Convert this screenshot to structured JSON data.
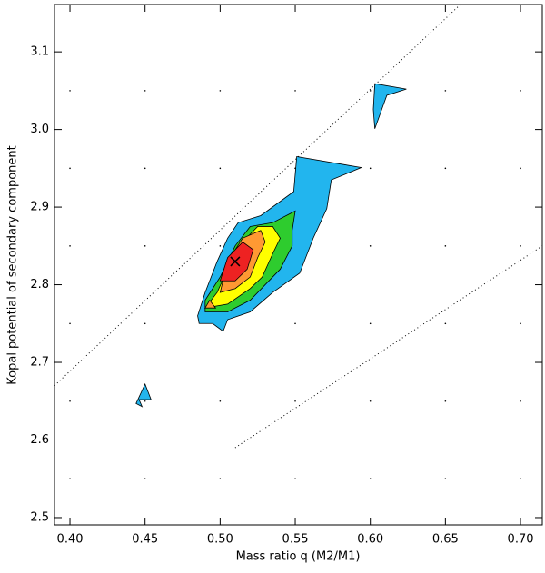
{
  "chart_data": {
    "type": "contour",
    "x_label": "Mass ratio q (M2/M1)",
    "y_label": "Kopal potential of secondary component",
    "xlim": [
      0.3897,
      0.7145
    ],
    "ylim": [
      2.4906,
      3.161
    ],
    "xticks": [
      {
        "value": 0.4,
        "label": "0.40"
      },
      {
        "value": 0.45,
        "label": "0.45"
      },
      {
        "value": 0.5,
        "label": "0.50"
      },
      {
        "value": 0.55,
        "label": "0.55"
      },
      {
        "value": 0.6,
        "label": "0.60"
      },
      {
        "value": 0.65,
        "label": "0.65"
      },
      {
        "value": 0.7,
        "label": "0.70"
      }
    ],
    "yticks": [
      2.5,
      2.6,
      2.7,
      2.8,
      2.9,
      {
        "value": 3,
        "label": "3.0"
      },
      3.1
    ],
    "contours": [
      {
        "color": "#22b5ee",
        "x": [
          0.485,
          0.486,
          0.495,
          0.502,
          0.505,
          0.52,
          0.535,
          0.553,
          0.562,
          0.571,
          0.574,
          0.594,
          0.551,
          0.549,
          0.527,
          0.512,
          0.505,
          0.498,
          0.49
        ],
        "y": [
          2.76,
          2.75,
          2.75,
          2.74,
          2.755,
          2.765,
          2.79,
          2.815,
          2.86,
          2.898,
          2.935,
          2.951,
          2.965,
          2.92,
          2.889,
          2.88,
          2.86,
          2.83,
          2.79
        ]
      },
      {
        "color": "#22b5ee",
        "x": [
          0.603,
          0.624,
          0.611,
          0.603,
          0.602
        ],
        "y": [
          3.059,
          3.052,
          3.044,
          3.001,
          3.026
        ]
      },
      {
        "color": "#22b5ee",
        "x": [
          0.45,
          0.454,
          0.446,
          0.448,
          0.444
        ],
        "y": [
          2.672,
          2.652,
          2.652,
          2.643,
          2.647
        ]
      },
      {
        "color": "#2ecc2e",
        "x": [
          0.49,
          0.49,
          0.5,
          0.51,
          0.52,
          0.535,
          0.545,
          0.55,
          0.548,
          0.548,
          0.54,
          0.53,
          0.52,
          0.505
        ],
        "y": [
          2.765,
          2.78,
          2.81,
          2.85,
          2.875,
          2.88,
          2.89,
          2.895,
          2.87,
          2.85,
          2.82,
          2.8,
          2.78,
          2.765
        ]
      },
      {
        "color": "#ffff00",
        "x": [
          0.49,
          0.498,
          0.505,
          0.515,
          0.525,
          0.535,
          0.54,
          0.535,
          0.528,
          0.52,
          0.505
        ],
        "y": [
          2.77,
          2.79,
          2.82,
          2.855,
          2.875,
          2.875,
          2.86,
          2.84,
          2.81,
          2.795,
          2.775
        ]
      },
      {
        "color": "#ff9933",
        "x": [
          0.49,
          0.493,
          0.497
        ],
        "y": [
          2.77,
          2.78,
          2.77
        ]
      },
      {
        "color": "#ff9933",
        "x": [
          0.5,
          0.505,
          0.515,
          0.527,
          0.53,
          0.525,
          0.52,
          0.51
        ],
        "y": [
          2.79,
          2.83,
          2.86,
          2.87,
          2.855,
          2.835,
          2.81,
          2.795
        ]
      },
      {
        "color": "#ee2222",
        "x": [
          0.5,
          0.505,
          0.515,
          0.522,
          0.518,
          0.51
        ],
        "y": [
          2.805,
          2.835,
          2.855,
          2.845,
          2.82,
          2.805
        ]
      }
    ],
    "lines": [
      {
        "x": [
          0.3897,
          0.66
        ],
        "y": [
          2.67,
          3.161
        ]
      },
      {
        "x": [
          0.51,
          0.7145
        ],
        "y": [
          2.59,
          2.85
        ]
      }
    ],
    "best_fit": {
      "x": 0.51,
      "y": 2.83
    }
  }
}
